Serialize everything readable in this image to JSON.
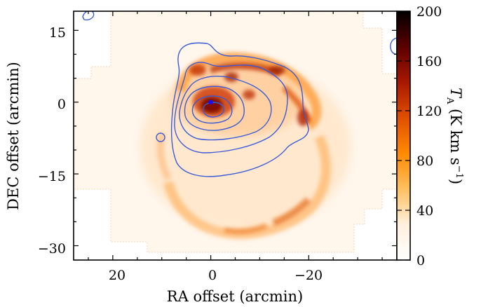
{
  "chart_data": {
    "type": "heatmap",
    "title": "",
    "xlabel": "RA offset (arcmin)",
    "ylabel": "DEC offset (arcmin)",
    "x_range": [
      28,
      -38
    ],
    "y_range": [
      -33,
      19
    ],
    "x_ticks": [
      {
        "value": 20,
        "label": "20"
      },
      {
        "value": 0,
        "label": "0"
      },
      {
        "value": -20,
        "label": "−20"
      }
    ],
    "y_ticks": [
      {
        "value": 15,
        "label": "15"
      },
      {
        "value": 0,
        "label": "0"
      },
      {
        "value": -15,
        "label": "−15"
      },
      {
        "value": -30,
        "label": "−30"
      }
    ],
    "colorbar": {
      "label": "T_A (K km s^-1)",
      "label_main": "T",
      "label_sub": "A",
      "label_units": " (K km s",
      "label_exp": "−1",
      "label_close": ")",
      "range": [
        0,
        200
      ],
      "ticks": [
        0,
        40,
        80,
        120,
        160,
        200
      ],
      "colormap": "gist_heat_r",
      "stops": [
        "#ffffff",
        "#fff0dd",
        "#ffc060",
        "#ff8a00",
        "#e05000",
        "#a81800",
        "#5a0000",
        "#000000"
      ]
    },
    "contour_color": "#3b5bd6",
    "marker": {
      "x": 0,
      "y": 0,
      "color": "#1010ff"
    }
  }
}
